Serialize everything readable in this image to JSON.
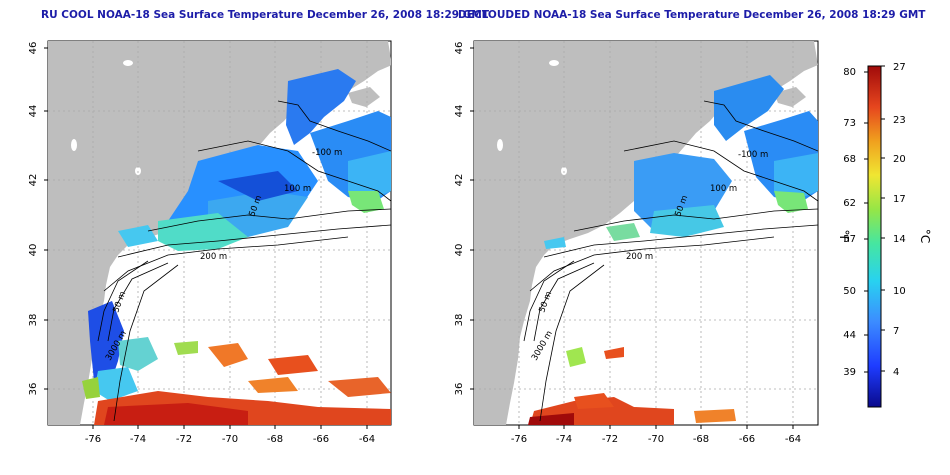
{
  "panels": [
    {
      "id": "left",
      "title": "RU COOL NOAA-18 Sea Surface Temperature December 26, 2008 18:29 GMT",
      "contour_labels": [
        "-100 m",
        "100 m",
        "50 m",
        "200 m",
        "50 m",
        "3000 m"
      ]
    },
    {
      "id": "right",
      "title": "DECLOUDED NOAA-18 Sea Surface Temperature December 26, 2008 18:29 GMT",
      "contour_labels": [
        "-100 m",
        "100 m",
        "50 m",
        "200 m",
        "50 m",
        "3000 m"
      ]
    }
  ],
  "axes": {
    "lat_ticks": [
      "46",
      "44",
      "42",
      "40",
      "38",
      "36"
    ],
    "lon_ticks": [
      "-76",
      "-74",
      "-72",
      "-70",
      "-68",
      "-66",
      "-64"
    ]
  },
  "colorbar": {
    "fahrenheit_ticks": [
      "80",
      "73",
      "68",
      "62",
      "57",
      "50",
      "44",
      "39"
    ],
    "celsius_ticks": [
      "27",
      "23",
      "20",
      "17",
      "14",
      "10",
      "7",
      "4"
    ],
    "fahrenheit_label": "°F",
    "celsius_label": "°C"
  },
  "colors": {
    "land": "#bebebe",
    "ocean": "#ffffff",
    "title": "#1c1ca8"
  }
}
